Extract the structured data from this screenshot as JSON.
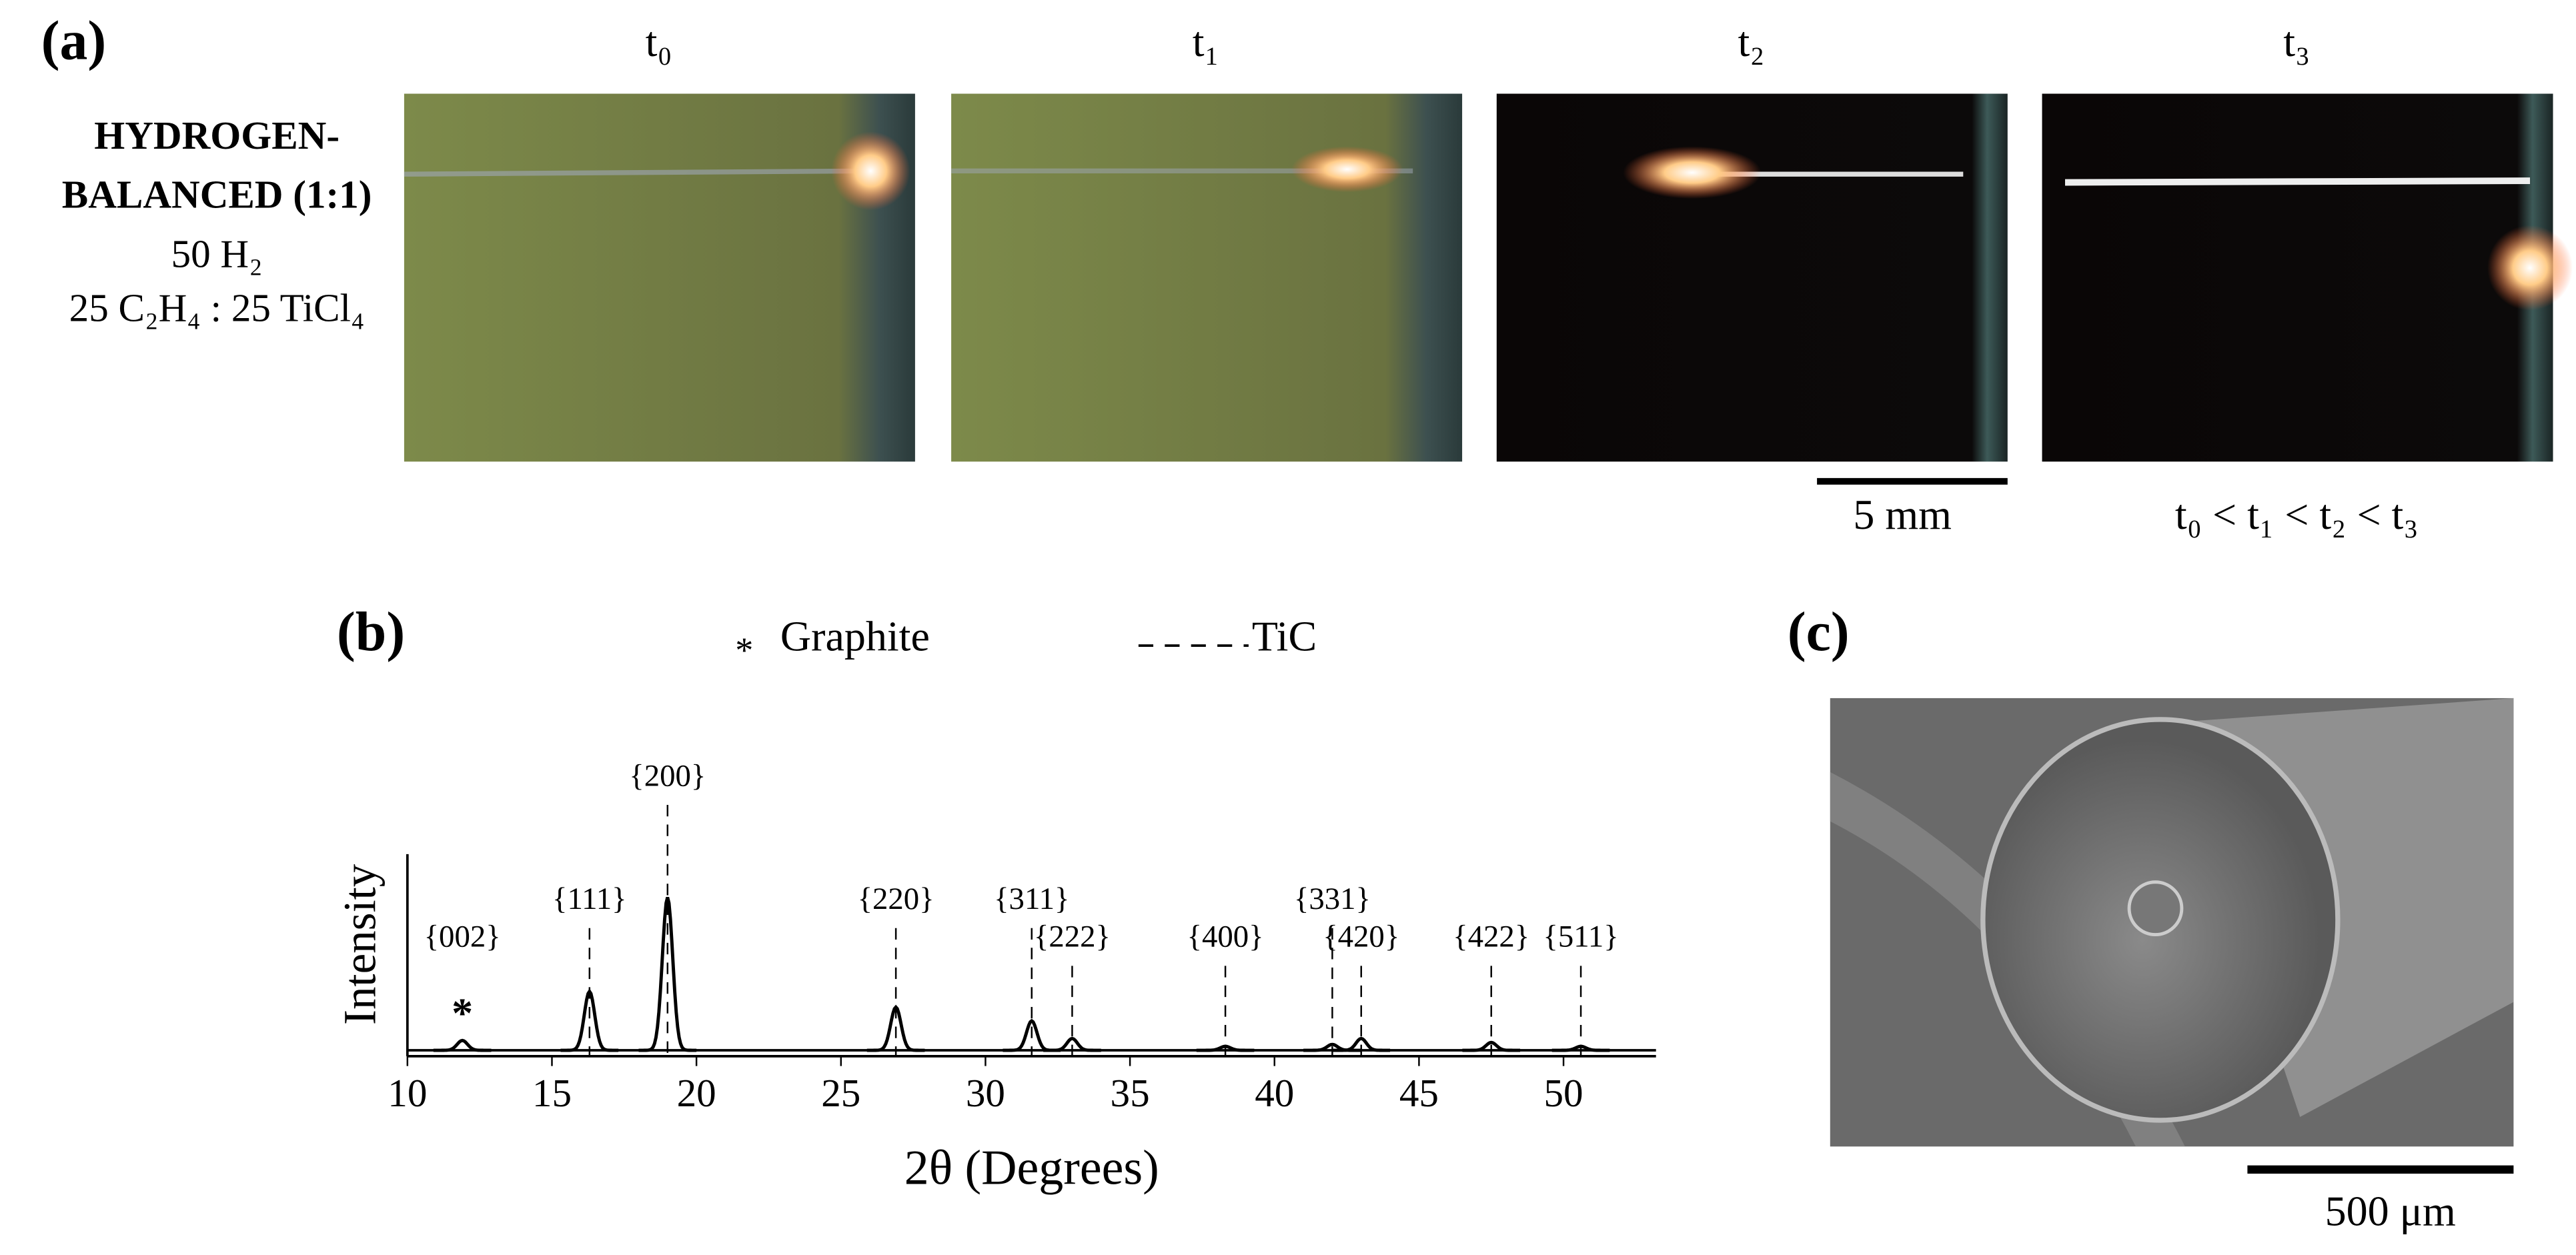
{
  "panel_a": {
    "label": "(a)",
    "times": [
      "t₀",
      "t₁",
      "t₂",
      "t₃"
    ],
    "condition": [
      "HYDROGEN-",
      "BALANCED (1:1)"
    ],
    "composition": [
      "50 H₂",
      "25 C₂H₄ : 25 TiCl₄"
    ],
    "scale": "5 mm",
    "order": "t₀ < t₁ < t₂ < t₃"
  },
  "chart_data": {
    "type": "line",
    "panel": "(b)",
    "xlabel": "2θ (Degrees)",
    "ylabel": "Intensity",
    "xlim": [
      10,
      53.2
    ],
    "xticks": [
      10,
      15,
      20,
      25,
      30,
      35,
      40,
      45,
      50
    ],
    "ylim": [
      -3,
      100
    ],
    "series": [
      {
        "name": "Graphite",
        "marker": "*",
        "peaks": [
          {
            "label": "{002}",
            "x": 11.9,
            "y": 5
          }
        ]
      },
      {
        "name": "TiC",
        "peaks": [
          {
            "label": "{111}",
            "x": 16.3,
            "y": 30
          },
          {
            "label": "{200}",
            "x": 19.0,
            "y": 78
          },
          {
            "label": "{220}",
            "x": 26.9,
            "y": 22
          },
          {
            "label": "{311}",
            "x": 31.6,
            "y": 15
          },
          {
            "label": "{222}",
            "x": 33.0,
            "y": 6
          },
          {
            "label": "{400}",
            "x": 38.3,
            "y": 2
          },
          {
            "label": "{331}",
            "x": 42.0,
            "y": 3
          },
          {
            "label": "{420}",
            "x": 43.0,
            "y": 6
          },
          {
            "label": "{422}",
            "x": 47.5,
            "y": 4
          },
          {
            "label": "{511}",
            "x": 50.6,
            "y": 2
          }
        ]
      }
    ]
  },
  "panel_c": {
    "label": "(c)",
    "scale": "500 μm"
  }
}
